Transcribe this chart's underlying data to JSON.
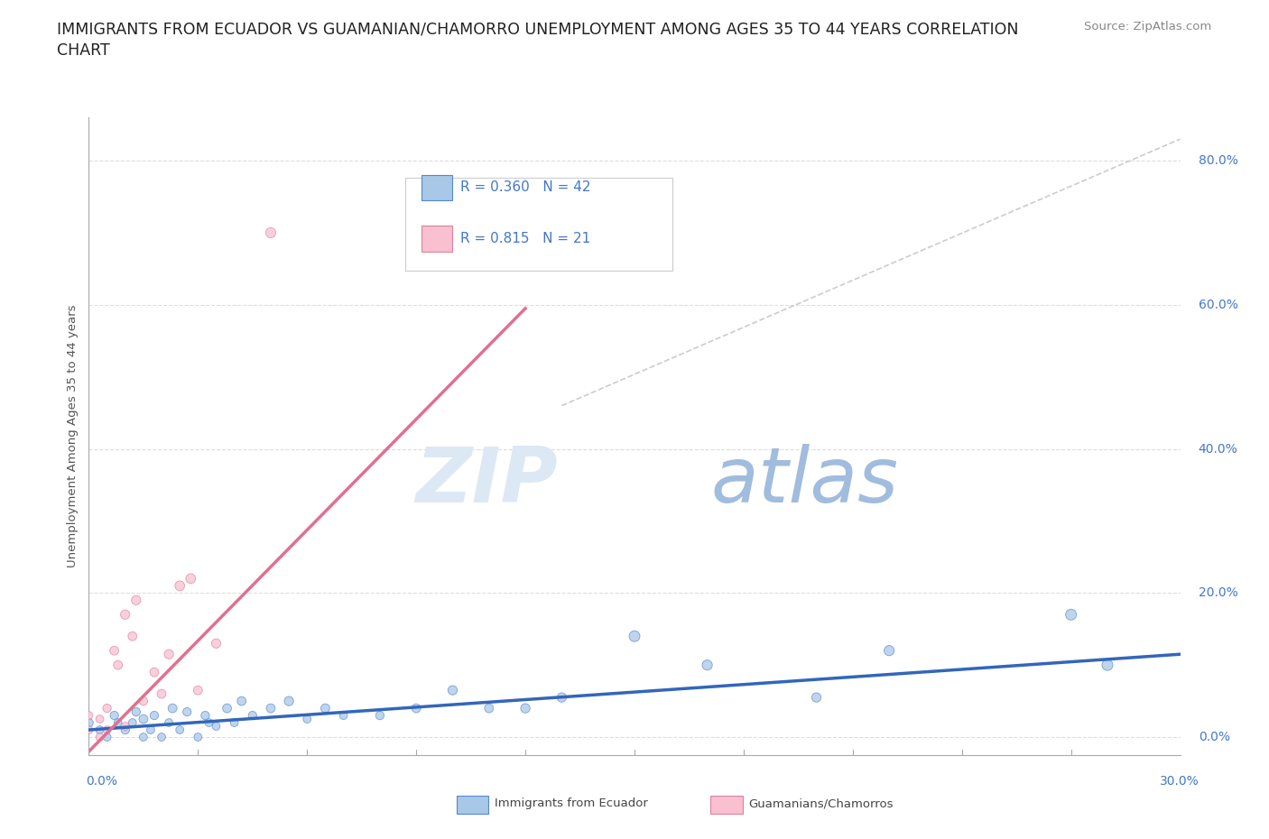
{
  "title": "IMMIGRANTS FROM ECUADOR VS GUAMANIAN/CHAMORRO UNEMPLOYMENT AMONG AGES 35 TO 44 YEARS CORRELATION\nCHART",
  "source_text": "Source: ZipAtlas.com",
  "xlabel_bottom_left": "0.0%",
  "xlabel_bottom_right": "30.0%",
  "ylabel": "Unemployment Among Ages 35 to 44 years",
  "ytick_values": [
    0.0,
    0.2,
    0.4,
    0.6,
    0.8
  ],
  "xmin": 0.0,
  "xmax": 0.3,
  "ymin": -0.025,
  "ymax": 0.86,
  "watermark_zip": "ZIP",
  "watermark_atlas": "atlas",
  "legend_label_ecuador": "R = 0.360   N = 42",
  "legend_label_guam": "R = 0.815   N = 21",
  "ecuador_scatter_x": [
    0.0,
    0.003,
    0.005,
    0.007,
    0.008,
    0.01,
    0.012,
    0.013,
    0.015,
    0.015,
    0.017,
    0.018,
    0.02,
    0.022,
    0.023,
    0.025,
    0.027,
    0.03,
    0.032,
    0.033,
    0.035,
    0.038,
    0.04,
    0.042,
    0.045,
    0.05,
    0.055,
    0.06,
    0.065,
    0.07,
    0.08,
    0.09,
    0.1,
    0.11,
    0.12,
    0.13,
    0.15,
    0.17,
    0.2,
    0.22,
    0.27,
    0.28
  ],
  "ecuador_scatter_y": [
    0.02,
    0.01,
    0.0,
    0.03,
    0.02,
    0.01,
    0.02,
    0.035,
    0.0,
    0.025,
    0.01,
    0.03,
    0.0,
    0.02,
    0.04,
    0.01,
    0.035,
    0.0,
    0.03,
    0.02,
    0.015,
    0.04,
    0.02,
    0.05,
    0.03,
    0.04,
    0.05,
    0.025,
    0.04,
    0.03,
    0.03,
    0.04,
    0.065,
    0.04,
    0.04,
    0.055,
    0.14,
    0.1,
    0.055,
    0.12,
    0.17,
    0.1
  ],
  "ecuador_sizes": [
    50,
    40,
    40,
    45,
    40,
    45,
    40,
    45,
    40,
    50,
    40,
    45,
    40,
    40,
    50,
    40,
    45,
    40,
    45,
    40,
    40,
    50,
    40,
    50,
    45,
    50,
    55,
    40,
    50,
    40,
    45,
    50,
    55,
    50,
    55,
    55,
    75,
    65,
    55,
    65,
    75,
    75
  ],
  "guam_scatter_x": [
    0.0,
    0.0,
    0.003,
    0.003,
    0.005,
    0.005,
    0.007,
    0.008,
    0.01,
    0.01,
    0.012,
    0.013,
    0.015,
    0.018,
    0.02,
    0.022,
    0.025,
    0.028,
    0.03,
    0.035,
    0.05
  ],
  "guam_scatter_y": [
    0.01,
    0.03,
    0.0,
    0.025,
    0.01,
    0.04,
    0.12,
    0.1,
    0.015,
    0.17,
    0.14,
    0.19,
    0.05,
    0.09,
    0.06,
    0.115,
    0.21,
    0.22,
    0.065,
    0.13,
    0.7
  ],
  "guam_sizes": [
    40,
    40,
    40,
    40,
    40,
    45,
    50,
    50,
    40,
    55,
    50,
    55,
    45,
    50,
    50,
    55,
    60,
    60,
    50,
    55,
    65
  ],
  "ecuador_line_x": [
    0.0,
    0.3
  ],
  "ecuador_line_y": [
    0.01,
    0.115
  ],
  "guam_line_x": [
    0.0,
    0.12
  ],
  "guam_line_y": [
    -0.02,
    0.595
  ],
  "dashed_line_x": [
    0.13,
    0.3
  ],
  "dashed_line_y": [
    0.46,
    0.83
  ],
  "ecuador_color": "#a8c8e8",
  "ecuador_edge_color": "#5588cc",
  "guam_color": "#f8c0d0",
  "guam_edge_color": "#e080a0",
  "ecuador_line_color": "#3366bb",
  "guam_line_color": "#e07090",
  "grid_color": "#dddddd",
  "background_color": "#ffffff",
  "title_fontsize": 12.5,
  "axis_label_fontsize": 9.5,
  "tick_fontsize": 10,
  "source_fontsize": 9.5
}
